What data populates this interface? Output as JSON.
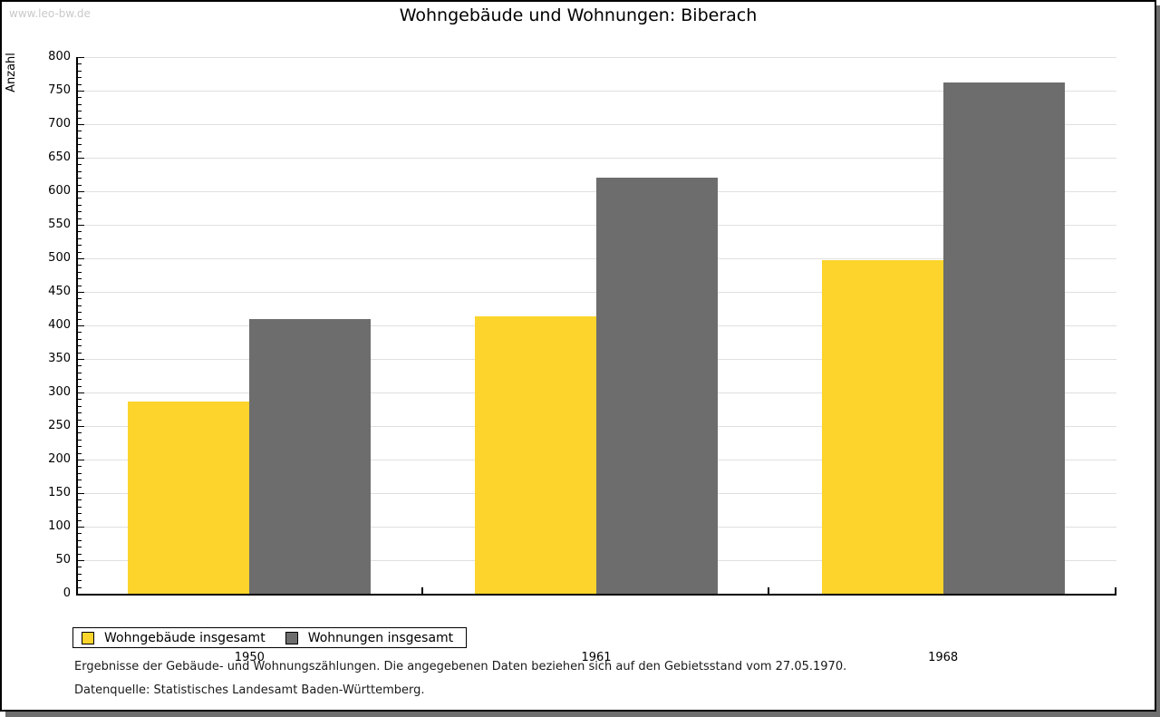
{
  "watermark": "www.leo-bw.de",
  "title": "Wohngebäude und Wohnungen: Biberach",
  "chart_data": {
    "type": "bar",
    "title": "Wohngebäude und Wohnungen: Biberach",
    "xlabel": "",
    "ylabel": "Anzahl",
    "ylim": [
      0,
      800
    ],
    "ytick_major": 50,
    "ytick_minor": 10,
    "grid": "horizontal-major",
    "legend_position": "bottom-left",
    "categories": [
      "1950",
      "1961",
      "1968"
    ],
    "series": [
      {
        "name": "Wohngebäude insgesamt",
        "color": "#FCD42C",
        "values": [
          287,
          414,
          497
        ]
      },
      {
        "name": "Wohnungen insgesamt",
        "color": "#6D6D6D",
        "values": [
          410,
          620,
          762
        ]
      }
    ]
  },
  "colors": {
    "series1": "#FCD42C",
    "series2": "#6D6D6D",
    "gridline": "#E0E0E0",
    "axis": "#000000",
    "watermark": "#C9C9C9",
    "shadow": "#6E6E6E"
  },
  "footnotes": [
    "Ergebnisse der Gebäude- und Wohnungszählungen. Die angegebenen Daten beziehen sich auf den Gebietsstand vom 27.05.1970.",
    "Datenquelle: Statistisches Landesamt Baden-Württemberg."
  ]
}
